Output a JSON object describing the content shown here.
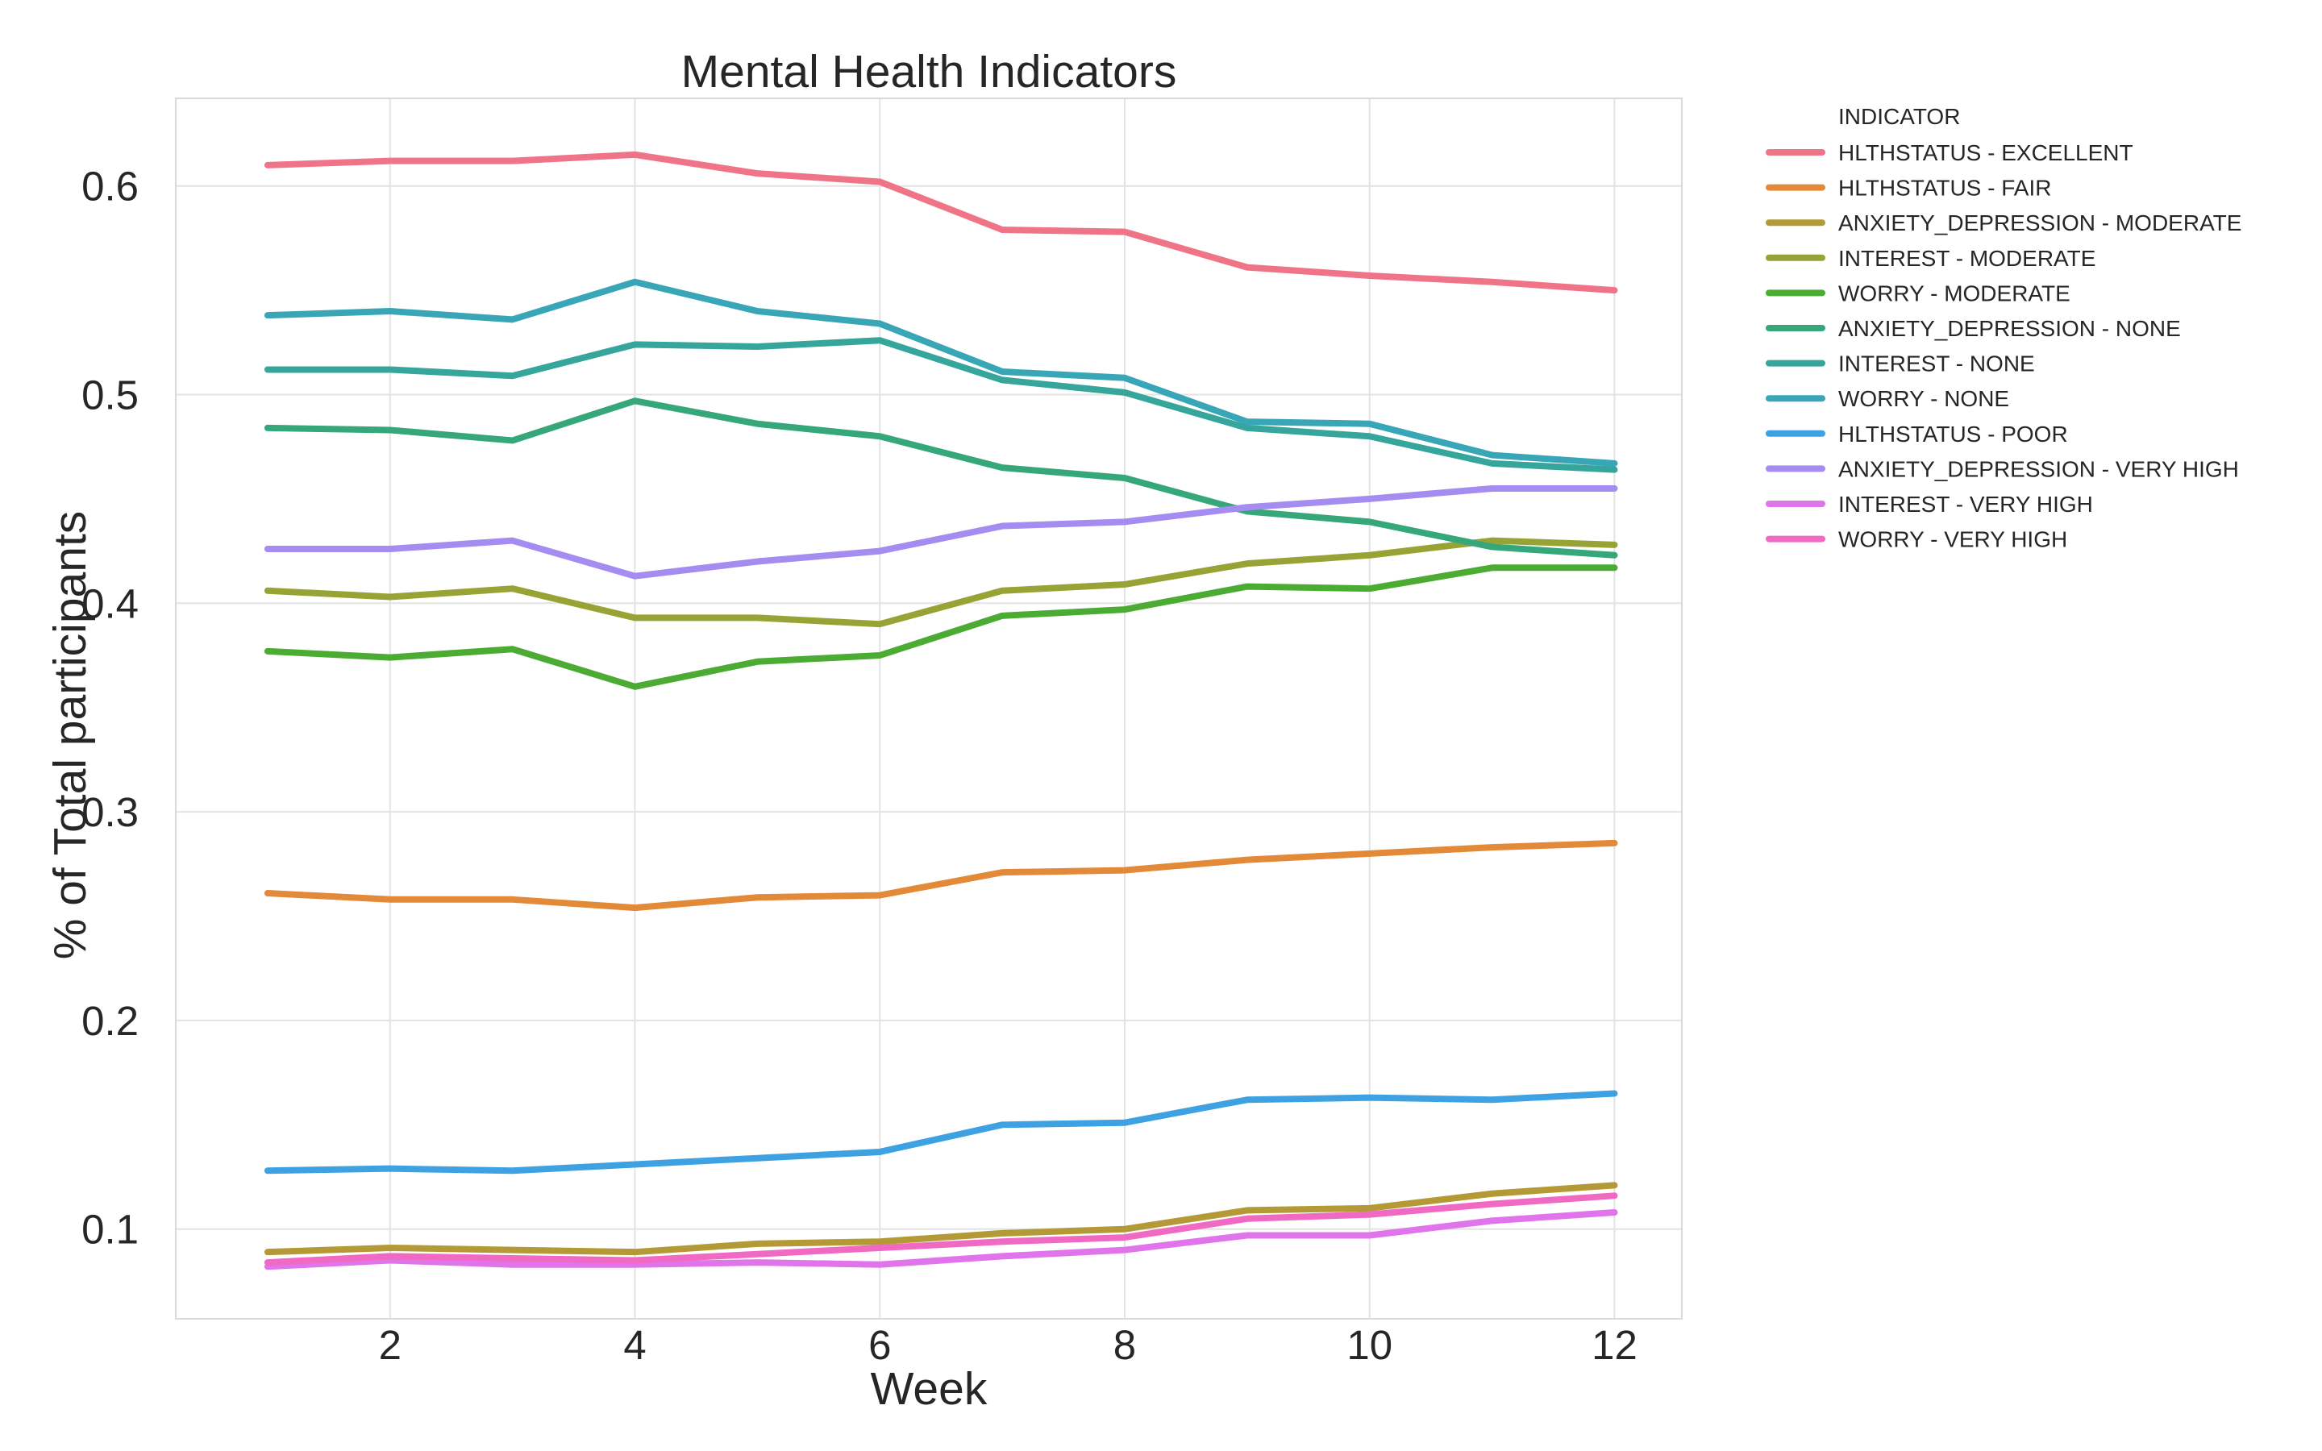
{
  "chart_data": {
    "type": "line",
    "title": "Mental Health Indicators",
    "xlabel": "Week",
    "ylabel": "% of Total participants",
    "xlim": [
      0.25,
      12.55
    ],
    "ylim": [
      0.057,
      0.642
    ],
    "xticks": [
      2,
      4,
      6,
      8,
      10,
      12
    ],
    "yticks": [
      0.1,
      0.2,
      0.3,
      0.4,
      0.5,
      0.6
    ],
    "ytick_labels": [
      "0.1",
      "0.2",
      "0.3",
      "0.4",
      "0.5",
      "0.6"
    ],
    "grid": true,
    "legend_title": "INDICATOR",
    "legend_placement": "outside-right-top",
    "x": [
      1,
      2,
      3,
      4,
      5,
      6,
      7,
      8,
      9,
      10,
      11,
      12
    ],
    "series": [
      {
        "name": "HLTHSTATUS - EXCELLENT",
        "color": "#f07487",
        "values": [
          0.61,
          0.612,
          0.612,
          0.615,
          0.606,
          0.602,
          0.579,
          0.578,
          0.561,
          0.557,
          0.554,
          0.55
        ]
      },
      {
        "name": "HLTHSTATUS - FAIR",
        "color": "#e28a38",
        "values": [
          0.261,
          0.258,
          0.258,
          0.254,
          0.259,
          0.26,
          0.271,
          0.272,
          0.277,
          0.28,
          0.283,
          0.285
        ]
      },
      {
        "name": "ANXIETY_DEPRESSION - MODERATE",
        "color": "#b39a37",
        "values": [
          0.089,
          0.091,
          0.09,
          0.089,
          0.093,
          0.094,
          0.098,
          0.1,
          0.109,
          0.11,
          0.117,
          0.121
        ]
      },
      {
        "name": "INTEREST - MODERATE",
        "color": "#97a334",
        "values": [
          0.406,
          0.403,
          0.407,
          0.393,
          0.393,
          0.39,
          0.406,
          0.409,
          0.419,
          0.423,
          0.43,
          0.428
        ]
      },
      {
        "name": "WORRY - MODERATE",
        "color": "#4bab33",
        "values": [
          0.377,
          0.374,
          0.378,
          0.36,
          0.372,
          0.375,
          0.394,
          0.397,
          0.408,
          0.407,
          0.417,
          0.417
        ]
      },
      {
        "name": "ANXIETY_DEPRESSION - NONE",
        "color": "#36a77b",
        "values": [
          0.484,
          0.483,
          0.478,
          0.497,
          0.486,
          0.48,
          0.465,
          0.46,
          0.444,
          0.439,
          0.427,
          0.423
        ]
      },
      {
        "name": "INTEREST - NONE",
        "color": "#36a59b",
        "values": [
          0.512,
          0.512,
          0.509,
          0.524,
          0.523,
          0.526,
          0.507,
          0.501,
          0.484,
          0.48,
          0.467,
          0.464
        ]
      },
      {
        "name": "WORRY - NONE",
        "color": "#39a6b7",
        "values": [
          0.538,
          0.54,
          0.536,
          0.554,
          0.54,
          0.534,
          0.511,
          0.508,
          0.487,
          0.486,
          0.471,
          0.467
        ]
      },
      {
        "name": "HLTHSTATUS - POOR",
        "color": "#3ea1e2",
        "values": [
          0.128,
          0.129,
          0.128,
          0.131,
          0.134,
          0.137,
          0.15,
          0.151,
          0.162,
          0.163,
          0.162,
          0.165
        ]
      },
      {
        "name": "ANXIETY_DEPRESSION - VERY HIGH",
        "color": "#a58cf0",
        "values": [
          0.426,
          0.426,
          0.43,
          0.413,
          0.42,
          0.425,
          0.437,
          0.439,
          0.446,
          0.45,
          0.455,
          0.455
        ]
      },
      {
        "name": "INTEREST - VERY HIGH",
        "color": "#e074ea",
        "values": [
          0.082,
          0.085,
          0.083,
          0.083,
          0.084,
          0.083,
          0.087,
          0.09,
          0.097,
          0.097,
          0.104,
          0.108
        ]
      },
      {
        "name": "WORRY - VERY HIGH",
        "color": "#f06ac4",
        "values": [
          0.084,
          0.087,
          0.086,
          0.085,
          0.088,
          0.091,
          0.094,
          0.096,
          0.105,
          0.107,
          0.112,
          0.116
        ]
      }
    ]
  }
}
